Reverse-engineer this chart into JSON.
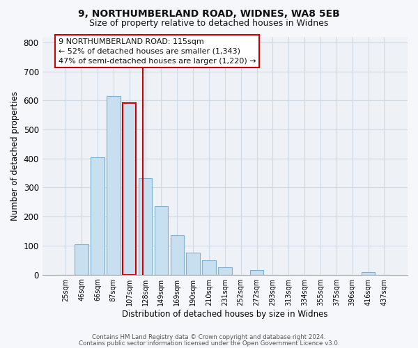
{
  "title_line1": "9, NORTHUMBERLAND ROAD, WIDNES, WA8 5EB",
  "title_line2": "Size of property relative to detached houses in Widnes",
  "xlabel": "Distribution of detached houses by size in Widnes",
  "ylabel": "Number of detached properties",
  "bar_labels": [
    "25sqm",
    "46sqm",
    "66sqm",
    "87sqm",
    "107sqm",
    "128sqm",
    "149sqm",
    "169sqm",
    "190sqm",
    "210sqm",
    "231sqm",
    "252sqm",
    "272sqm",
    "293sqm",
    "313sqm",
    "334sqm",
    "355sqm",
    "375sqm",
    "396sqm",
    "416sqm",
    "437sqm"
  ],
  "bar_heights": [
    0,
    105,
    403,
    615,
    590,
    333,
    237,
    136,
    76,
    50,
    25,
    0,
    15,
    0,
    0,
    0,
    0,
    0,
    0,
    8,
    0
  ],
  "bar_color": "#c8dff0",
  "bar_edge_color": "#7ab0d4",
  "highlight_bar_index": 4,
  "highlight_edge_color": "#cc0000",
  "vline_color": "#cc0000",
  "vline_x": 4.85,
  "annotation_title": "9 NORTHUMBERLAND ROAD: 115sqm",
  "annotation_line1": "← 52% of detached houses are smaller (1,343)",
  "annotation_line2": "47% of semi-detached houses are larger (1,220) →",
  "annotation_box_color": "#ffffff",
  "annotation_box_edge": "#cc0000",
  "ylim": [
    0,
    820
  ],
  "yticks": [
    0,
    100,
    200,
    300,
    400,
    500,
    600,
    700,
    800
  ],
  "footer_line1": "Contains HM Land Registry data © Crown copyright and database right 2024.",
  "footer_line2": "Contains public sector information licensed under the Open Government Licence v3.0.",
  "bg_color": "#f5f7fa",
  "plot_bg_color": "#eef2f7",
  "grid_color": "#d0dae6",
  "title_fontsize": 10,
  "subtitle_fontsize": 9
}
